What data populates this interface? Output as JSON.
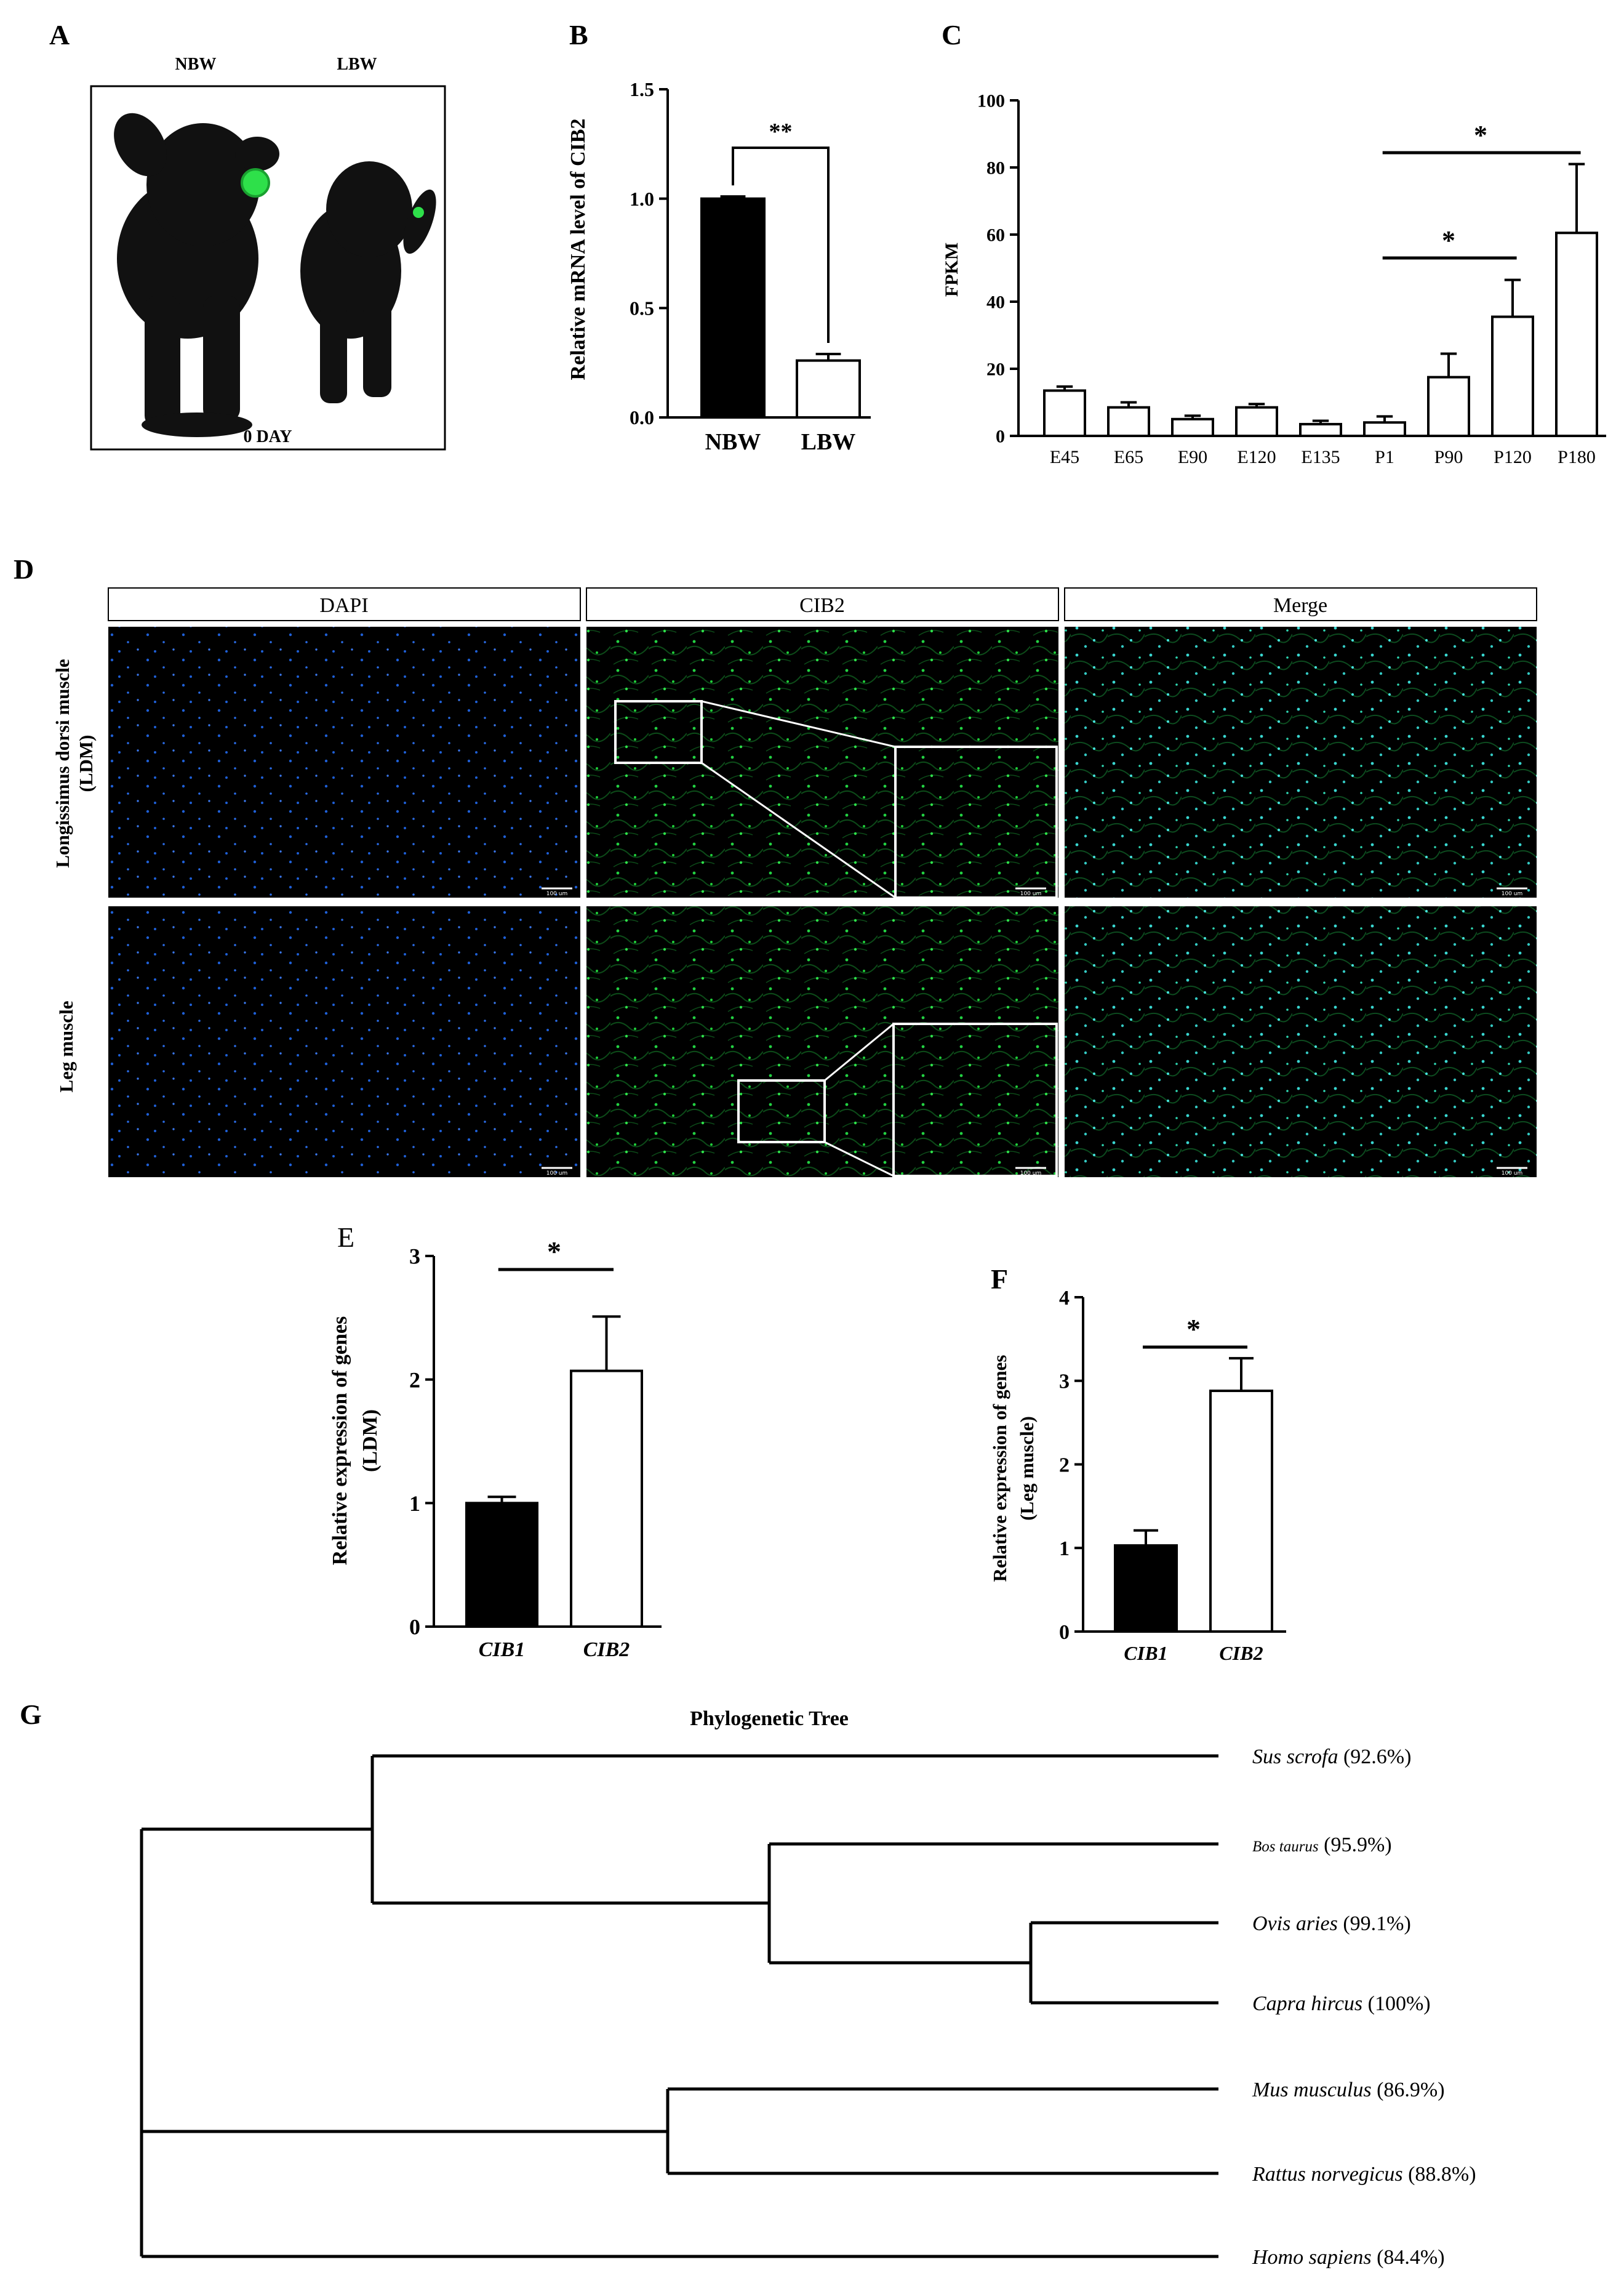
{
  "panel_letters": {
    "A": "A",
    "B": "B",
    "C": "C",
    "D": "D",
    "E": "E",
    "F": "F",
    "G": "G"
  },
  "panel_a": {
    "label_left": "NBW",
    "label_right": "LBW",
    "caption": "0 DAY"
  },
  "panel_d": {
    "columns": [
      "DAPI",
      "CIB2",
      "Merge"
    ],
    "row_labels": [
      "Longissimus dorsi muscle",
      "(LDM)",
      "Leg muscle"
    ],
    "scale_bars": {
      "ldm": [
        "100 um",
        "100 um",
        "100 um"
      ],
      "leg": [
        "100 um",
        "100 um",
        "100 um"
      ]
    },
    "colors": {
      "dapi": "#1e5fd6",
      "cib2": "#1fcf3a",
      "merge": "#39d6d0"
    }
  },
  "panel_g": {
    "title": "Phylogenetic Tree",
    "leaves": [
      {
        "species": "Sus scrofa",
        "pct": "(92.6%)"
      },
      {
        "species": "Bos taurus",
        "pct": "(95.9%)"
      },
      {
        "species": "Ovis aries",
        "pct": "(99.1%)"
      },
      {
        "species": "Capra hircus",
        "pct": "(100%)"
      },
      {
        "species": "Mus musculus",
        "pct": "(86.9%)"
      },
      {
        "species": "Rattus norvegicus",
        "pct": "(88.8%)"
      },
      {
        "species": "Homo sapiens",
        "pct": "(84.4%)"
      }
    ]
  },
  "chart_data": [
    {
      "id": "B",
      "type": "bar",
      "categories": [
        "NBW",
        "LBW"
      ],
      "values": [
        1.0,
        0.26
      ],
      "errors": [
        0.01,
        0.03
      ],
      "fills": [
        "#000000",
        "#ffffff"
      ],
      "ylabel": "Relative mRNA level of CIB2",
      "ylim": [
        0,
        1.5
      ],
      "yticks": [
        "0.0",
        "0.5",
        "1.0",
        "1.5"
      ],
      "significance": [
        {
          "from": 0,
          "to": 1,
          "label": "**"
        }
      ]
    },
    {
      "id": "C",
      "type": "bar",
      "categories": [
        "E45",
        "E65",
        "E90",
        "E120",
        "E135",
        "P1",
        "P90",
        "P120",
        "P180"
      ],
      "values": [
        13.5,
        8.5,
        5.0,
        8.5,
        3.5,
        4.0,
        17.5,
        35.5,
        60.5
      ],
      "errors": [
        1.2,
        1.5,
        1.0,
        1.0,
        1.0,
        1.8,
        7.0,
        11.0,
        20.5
      ],
      "ylabel": "FPKM",
      "ylim": [
        0,
        100
      ],
      "yticks": [
        "0",
        "20",
        "40",
        "60",
        "80",
        "100"
      ],
      "significance": [
        {
          "from": 5,
          "to": 7,
          "label": "*"
        },
        {
          "from": 5,
          "to": 8,
          "label": "*"
        }
      ]
    },
    {
      "id": "E",
      "type": "bar",
      "categories": [
        "CIB1",
        "CIB2"
      ],
      "values": [
        1.0,
        2.07
      ],
      "errors": [
        0.05,
        0.44
      ],
      "fills": [
        "#000000",
        "#ffffff"
      ],
      "ylabel": "Relative expression of genes",
      "ylabel2": "(LDM)",
      "ylim": [
        0,
        3
      ],
      "yticks": [
        "0",
        "1",
        "2",
        "3"
      ],
      "significance": [
        {
          "from": 0,
          "to": 1,
          "label": "*"
        }
      ]
    },
    {
      "id": "F",
      "type": "bar",
      "categories": [
        "CIB1",
        "CIB2"
      ],
      "values": [
        1.03,
        2.88
      ],
      "errors": [
        0.18,
        0.39
      ],
      "fills": [
        "#000000",
        "#ffffff"
      ],
      "ylabel": "Relative expression of genes",
      "ylabel2": "(Leg muscle)",
      "ylim": [
        0,
        4
      ],
      "yticks": [
        "0",
        "1",
        "2",
        "3",
        "4"
      ],
      "significance": [
        {
          "from": 0,
          "to": 1,
          "label": "*"
        }
      ]
    }
  ]
}
